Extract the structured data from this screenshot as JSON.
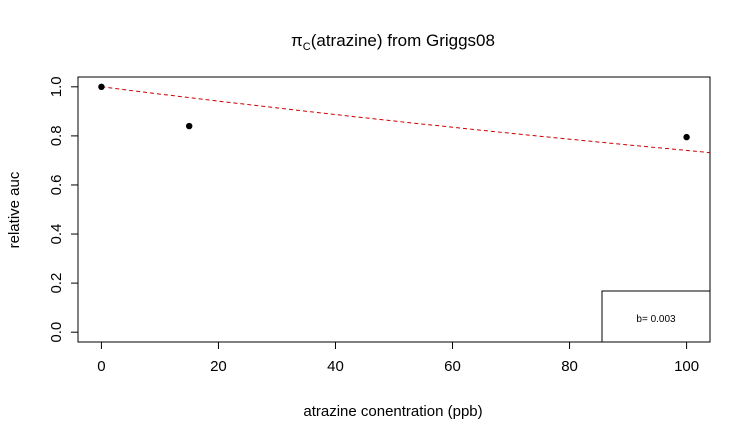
{
  "chart_data": {
    "type": "scatter",
    "title_prefix": "π",
    "title_subscript": "C",
    "title_suffix": "(atrazine) from Griggs08",
    "xlabel": "atrazine conentration (ppb)",
    "ylabel": "relative auc",
    "xlim": [
      -4,
      104
    ],
    "ylim": [
      -0.04,
      1.04
    ],
    "x_ticks": [
      0,
      20,
      40,
      60,
      80,
      100
    ],
    "y_ticks": [
      0.0,
      0.2,
      0.4,
      0.6,
      0.8,
      1.0
    ],
    "x_tick_labels": [
      "0",
      "20",
      "40",
      "60",
      "80",
      "100"
    ],
    "y_tick_labels": [
      "0.0",
      "0.2",
      "0.4",
      "0.6",
      "0.8",
      "1.0"
    ],
    "points": [
      {
        "x": 0,
        "y": 1.0
      },
      {
        "x": 15,
        "y": 0.84
      },
      {
        "x": 100,
        "y": 0.795
      }
    ],
    "fit_line": {
      "b": 0.003,
      "intercept": 1.0,
      "color": "#cc0000",
      "style": "dashed"
    },
    "legend_text": "b=  0.003",
    "legend_position": "bottom-right",
    "grid": false,
    "point_color": "#000000"
  }
}
